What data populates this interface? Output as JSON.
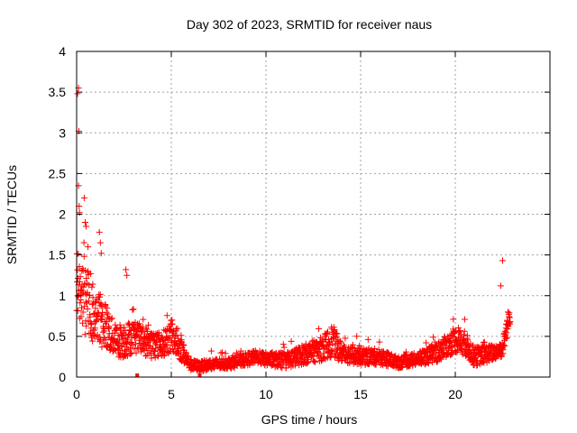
{
  "chart_data": {
    "type": "scatter",
    "title": "Day 302 of 2023, SRMTID for receiver naus",
    "xlabel": "GPS time / hours",
    "ylabel": "SRMTID / TECUs",
    "xlim": [
      0,
      25
    ],
    "ylim": [
      0,
      4
    ],
    "xticks": [
      0,
      5,
      10,
      15,
      20
    ],
    "yticks": [
      0,
      0.5,
      1,
      1.5,
      2,
      2.5,
      3,
      3.5,
      4
    ],
    "x_tick_labels": [
      "0",
      "5",
      "10",
      "15",
      "20"
    ],
    "y_tick_labels": [
      "0",
      "0.5",
      "1",
      "1.5",
      "2",
      "2.5",
      "3",
      "3.5",
      "4"
    ],
    "grid": true,
    "marker": "plus",
    "color": "#ff0000",
    "outliers": [
      {
        "x": 0.05,
        "y": 3.48
      },
      {
        "x": 0.1,
        "y": 3.55
      },
      {
        "x": 0.12,
        "y": 3.02
      },
      {
        "x": 0.1,
        "y": 2.35
      },
      {
        "x": 0.15,
        "y": 2.02
      },
      {
        "x": 0.4,
        "y": 2.2
      },
      {
        "x": 0.45,
        "y": 1.9
      },
      {
        "x": 0.5,
        "y": 1.85
      },
      {
        "x": 1.2,
        "y": 1.78
      },
      {
        "x": 1.25,
        "y": 1.65
      },
      {
        "x": 22.5,
        "y": 1.43
      },
      {
        "x": 22.4,
        "y": 1.12
      },
      {
        "x": 1.3,
        "y": 1.52
      },
      {
        "x": 0.6,
        "y": 1.6
      },
      {
        "x": 2.6,
        "y": 1.32
      },
      {
        "x": 2.65,
        "y": 1.25
      }
    ],
    "zero_markers": [
      {
        "x": 3.2,
        "y": 0
      },
      {
        "x": 6.5,
        "y": 0
      }
    ],
    "series_profile": [
      {
        "x": 0.0,
        "y": 1.1,
        "spread": 0.45
      },
      {
        "x": 0.5,
        "y": 0.95,
        "spread": 0.45
      },
      {
        "x": 1.0,
        "y": 0.75,
        "spread": 0.35
      },
      {
        "x": 1.5,
        "y": 0.65,
        "spread": 0.3
      },
      {
        "x": 2.0,
        "y": 0.45,
        "spread": 0.2
      },
      {
        "x": 2.5,
        "y": 0.45,
        "spread": 0.22
      },
      {
        "x": 3.0,
        "y": 0.5,
        "spread": 0.2
      },
      {
        "x": 3.5,
        "y": 0.45,
        "spread": 0.18
      },
      {
        "x": 4.0,
        "y": 0.4,
        "spread": 0.18
      },
      {
        "x": 4.5,
        "y": 0.4,
        "spread": 0.15
      },
      {
        "x": 5.0,
        "y": 0.5,
        "spread": 0.2
      },
      {
        "x": 5.5,
        "y": 0.35,
        "spread": 0.15
      },
      {
        "x": 6.0,
        "y": 0.15,
        "spread": 0.07
      },
      {
        "x": 6.5,
        "y": 0.13,
        "spread": 0.06
      },
      {
        "x": 7.0,
        "y": 0.15,
        "spread": 0.07
      },
      {
        "x": 8.0,
        "y": 0.17,
        "spread": 0.07
      },
      {
        "x": 9.0,
        "y": 0.22,
        "spread": 0.08
      },
      {
        "x": 9.5,
        "y": 0.25,
        "spread": 0.08
      },
      {
        "x": 10.0,
        "y": 0.22,
        "spread": 0.08
      },
      {
        "x": 11.0,
        "y": 0.2,
        "spread": 0.1
      },
      {
        "x": 12.0,
        "y": 0.28,
        "spread": 0.12
      },
      {
        "x": 13.0,
        "y": 0.35,
        "spread": 0.15
      },
      {
        "x": 13.5,
        "y": 0.45,
        "spread": 0.2
      },
      {
        "x": 14.0,
        "y": 0.3,
        "spread": 0.12
      },
      {
        "x": 15.0,
        "y": 0.25,
        "spread": 0.1
      },
      {
        "x": 16.0,
        "y": 0.25,
        "spread": 0.1
      },
      {
        "x": 17.0,
        "y": 0.18,
        "spread": 0.07
      },
      {
        "x": 18.0,
        "y": 0.22,
        "spread": 0.08
      },
      {
        "x": 19.0,
        "y": 0.3,
        "spread": 0.12
      },
      {
        "x": 20.0,
        "y": 0.45,
        "spread": 0.15
      },
      {
        "x": 20.5,
        "y": 0.42,
        "spread": 0.15
      },
      {
        "x": 21.0,
        "y": 0.25,
        "spread": 0.12
      },
      {
        "x": 22.0,
        "y": 0.3,
        "spread": 0.1
      },
      {
        "x": 22.5,
        "y": 0.35,
        "spread": 0.1
      },
      {
        "x": 22.9,
        "y": 0.8,
        "spread": 0.15
      }
    ]
  }
}
